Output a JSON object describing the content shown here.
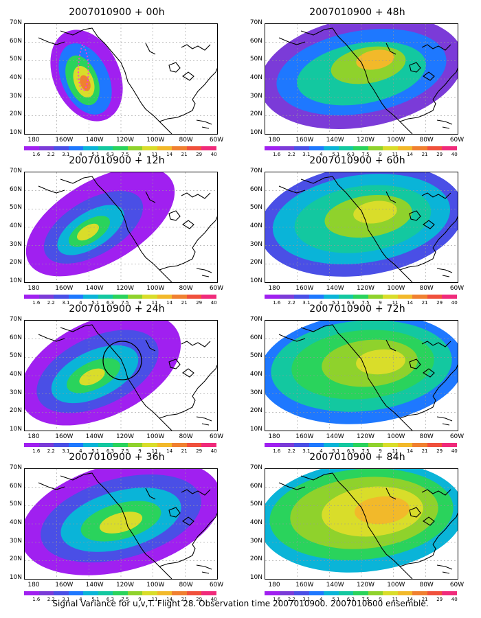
{
  "caption": "Signal Variance for u,v,T. Flight 28. Observation time 2007010900. 2007010600 ensemble.",
  "panels": [
    {
      "title": "2007010900 + 00h"
    },
    {
      "title": "2007010900 + 48h"
    },
    {
      "title": "2007010900 + 12h"
    },
    {
      "title": "2007010900 + 60h"
    },
    {
      "title": "2007010900 + 24h"
    },
    {
      "title": "2007010900 + 72h"
    },
    {
      "title": "2007010900 + 36h"
    },
    {
      "title": "2007010900 + 84h"
    }
  ],
  "axes": {
    "lat": [
      "70N",
      "60N",
      "50N",
      "40N",
      "30N",
      "20N",
      "10N"
    ],
    "lon": [
      "180",
      "160W",
      "140W",
      "120W",
      "100W",
      "80W",
      "60W"
    ]
  },
  "colorbar": {
    "labels": [
      "1.6",
      "2.2",
      "3.1",
      "4",
      "5.1",
      "6.3",
      "7.5",
      "9",
      "11",
      "14",
      "21",
      "29",
      "40"
    ],
    "colors": [
      "#a020f0",
      "#7b3bd8",
      "#4a4fe6",
      "#1e78ff",
      "#0ab4d8",
      "#13c8a0",
      "#2ad35c",
      "#8fd22c",
      "#d9dd2a",
      "#f2b92a",
      "#f08030",
      "#f0503c",
      "#f02a7a"
    ]
  }
}
